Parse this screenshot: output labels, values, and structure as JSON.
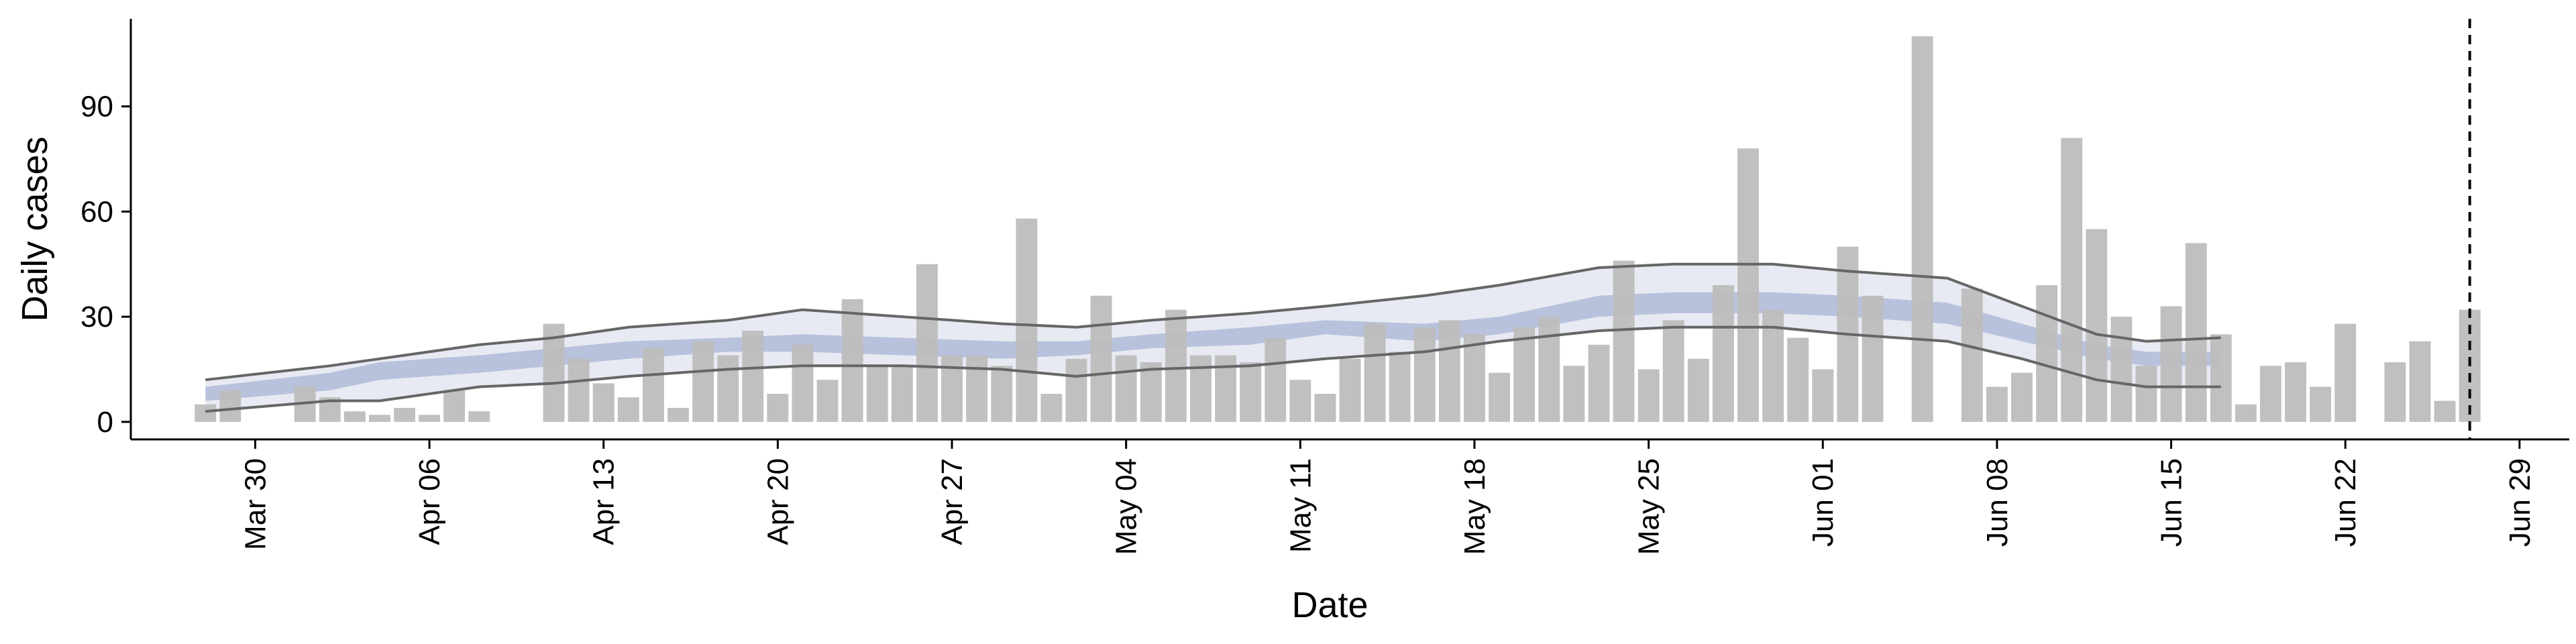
{
  "chart_data": {
    "type": "bar",
    "xlabel": "Date",
    "ylabel": "Daily cases",
    "ylim": [
      -5,
      115
    ],
    "yticks": [
      0,
      30,
      60,
      90
    ],
    "xlim": [
      "2020-03-25",
      "2020-07-01"
    ],
    "xticks": [
      {
        "date": "2020-03-30",
        "label": "Mar 30"
      },
      {
        "date": "2020-04-06",
        "label": "Apr 06"
      },
      {
        "date": "2020-04-13",
        "label": "Apr 13"
      },
      {
        "date": "2020-04-20",
        "label": "Apr 20"
      },
      {
        "date": "2020-04-27",
        "label": "Apr 27"
      },
      {
        "date": "2020-05-04",
        "label": "May 04"
      },
      {
        "date": "2020-05-11",
        "label": "May 11"
      },
      {
        "date": "2020-05-18",
        "label": "May 18"
      },
      {
        "date": "2020-05-25",
        "label": "May 25"
      },
      {
        "date": "2020-06-01",
        "label": "Jun 01"
      },
      {
        "date": "2020-06-08",
        "label": "Jun 08"
      },
      {
        "date": "2020-06-15",
        "label": "Jun 15"
      },
      {
        "date": "2020-06-22",
        "label": "Jun 22"
      },
      {
        "date": "2020-06-29",
        "label": "Jun 29"
      }
    ],
    "grid": false,
    "legend": "none",
    "bars": {
      "x": [
        "2020-03-28",
        "2020-03-29",
        "2020-03-30",
        "2020-03-31",
        "2020-04-01",
        "2020-04-02",
        "2020-04-03",
        "2020-04-04",
        "2020-04-05",
        "2020-04-06",
        "2020-04-07",
        "2020-04-08",
        "2020-04-09",
        "2020-04-10",
        "2020-04-11",
        "2020-04-12",
        "2020-04-13",
        "2020-04-14",
        "2020-04-15",
        "2020-04-16",
        "2020-04-17",
        "2020-04-18",
        "2020-04-19",
        "2020-04-20",
        "2020-04-21",
        "2020-04-22",
        "2020-04-23",
        "2020-04-24",
        "2020-04-25",
        "2020-04-26",
        "2020-04-27",
        "2020-04-28",
        "2020-04-29",
        "2020-04-30",
        "2020-05-01",
        "2020-05-02",
        "2020-05-03",
        "2020-05-04",
        "2020-05-05",
        "2020-05-06",
        "2020-05-07",
        "2020-05-08",
        "2020-05-09",
        "2020-05-10",
        "2020-05-11",
        "2020-05-12",
        "2020-05-13",
        "2020-05-14",
        "2020-05-15",
        "2020-05-16",
        "2020-05-17",
        "2020-05-18",
        "2020-05-19",
        "2020-05-20",
        "2020-05-21",
        "2020-05-22",
        "2020-05-23",
        "2020-05-24",
        "2020-05-25",
        "2020-05-26",
        "2020-05-27",
        "2020-05-28",
        "2020-05-29",
        "2020-05-30",
        "2020-05-31",
        "2020-06-01",
        "2020-06-02",
        "2020-06-03",
        "2020-06-04",
        "2020-06-05",
        "2020-06-06",
        "2020-06-07",
        "2020-06-08",
        "2020-06-09",
        "2020-06-10",
        "2020-06-11",
        "2020-06-12",
        "2020-06-13",
        "2020-06-14",
        "2020-06-15",
        "2020-06-16",
        "2020-06-17",
        "2020-06-18",
        "2020-06-19",
        "2020-06-20",
        "2020-06-21",
        "2020-06-22",
        "2020-06-23",
        "2020-06-24",
        "2020-06-25",
        "2020-06-26",
        "2020-06-27"
      ],
      "values": [
        5,
        9,
        0,
        0,
        10,
        7,
        3,
        2,
        4,
        2,
        9,
        3,
        0,
        0,
        28,
        18,
        11,
        7,
        21,
        4,
        23,
        19,
        26,
        8,
        22,
        12,
        35,
        16,
        16,
        45,
        19,
        19,
        16,
        58,
        8,
        18,
        36,
        19,
        17,
        32,
        19,
        19,
        17,
        24,
        12,
        8,
        18,
        28,
        20,
        27,
        29,
        25,
        14,
        27,
        30,
        16,
        22,
        46,
        15,
        29,
        18,
        39,
        78,
        32,
        24,
        15,
        50,
        36,
        0,
        110,
        0,
        38,
        10,
        14,
        39,
        81,
        55,
        30,
        16,
        33,
        51,
        25,
        5,
        16,
        17,
        10,
        28,
        0,
        17,
        23,
        6,
        32
      ],
      "color": "#bdbdbd"
    },
    "bands": {
      "x": [
        "2020-03-28",
        "2020-04-02",
        "2020-04-04",
        "2020-04-08",
        "2020-04-11",
        "2020-04-14",
        "2020-04-18",
        "2020-04-21",
        "2020-04-25",
        "2020-04-29",
        "2020-05-02",
        "2020-05-05",
        "2020-05-09",
        "2020-05-12",
        "2020-05-16",
        "2020-05-19",
        "2020-05-23",
        "2020-05-26",
        "2020-05-30",
        "2020-06-02",
        "2020-06-06",
        "2020-06-09",
        "2020-06-12",
        "2020-06-14",
        "2020-06-17"
      ],
      "inner_low": [
        6,
        9,
        12,
        14,
        16,
        18,
        20,
        20,
        19,
        18,
        19,
        21,
        22,
        25,
        23,
        25,
        30,
        31,
        31,
        30,
        28,
        23,
        18,
        16,
        16
      ],
      "inner_high": [
        10,
        14,
        17,
        19,
        21,
        23,
        24,
        25,
        24,
        23,
        23,
        25,
        27,
        29,
        28,
        30,
        36,
        37,
        37,
        36,
        34,
        28,
        22,
        20,
        20
      ],
      "outer_low": [
        3,
        6,
        6,
        10,
        11,
        13,
        15,
        16,
        16,
        15,
        13,
        15,
        16,
        18,
        20,
        23,
        26,
        27,
        27,
        25,
        23,
        18,
        12,
        10,
        10
      ],
      "outer_high": [
        12,
        16,
        18,
        22,
        24,
        27,
        29,
        32,
        30,
        28,
        27,
        29,
        31,
        33,
        36,
        39,
        44,
        45,
        45,
        43,
        41,
        33,
        25,
        23,
        24
      ],
      "outer_fill": "#e8eaf3",
      "inner_fill": "#b8c2dc",
      "bound_line": "#666666"
    },
    "vline": {
      "date": "2020-06-27",
      "style": "dashed",
      "color": "#000000"
    }
  }
}
